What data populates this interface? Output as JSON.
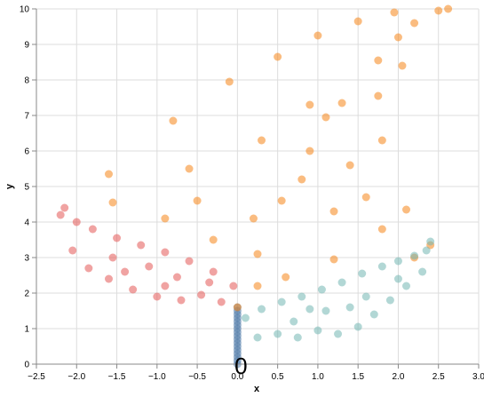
{
  "chart_data": {
    "type": "scatter",
    "title": "",
    "xlabel": "x",
    "ylabel": "y",
    "xlim": [
      -2.5,
      3.0
    ],
    "ylim": [
      0,
      10
    ],
    "x_ticks": [
      "−2.5",
      "−2.0",
      "−1.5",
      "−1.0",
      "−0.5",
      "0.0",
      "0.5",
      "1.0",
      "1.5",
      "2.0",
      "2.5",
      "3.0"
    ],
    "y_ticks": [
      "0",
      "1",
      "2",
      "3",
      "4",
      "5",
      "6",
      "7",
      "8",
      "9",
      "10"
    ],
    "grid": true,
    "legend": "none",
    "annotation": {
      "text": "0",
      "x": 0.0,
      "y": 0.0
    },
    "series_colors": {
      "main": "#f58518",
      "left": "#e45756",
      "right": "#72b7b2",
      "stem": "#4c78a8"
    },
    "series": [
      {
        "color": "#4c78a8",
        "values": [
          [
            0,
            0.0
          ],
          [
            0,
            0.1
          ],
          [
            0,
            0.2
          ],
          [
            0,
            0.3
          ],
          [
            0,
            0.4
          ],
          [
            0,
            0.5
          ],
          [
            0,
            0.6
          ],
          [
            0,
            0.7
          ],
          [
            0,
            0.8
          ],
          [
            0,
            0.9
          ],
          [
            0,
            1.0
          ],
          [
            0,
            1.1
          ],
          [
            0,
            1.2
          ],
          [
            0,
            1.3
          ],
          [
            0,
            1.4
          ],
          [
            0,
            1.5
          ],
          [
            0,
            1.6
          ]
        ]
      },
      {
        "color": "#f58518",
        "values": [
          [
            0,
            1.6
          ],
          [
            0.25,
            3.1
          ],
          [
            0.55,
            4.6
          ],
          [
            0.9,
            6.0
          ],
          [
            1.3,
            7.35
          ],
          [
            1.75,
            8.55
          ],
          [
            2.2,
            9.6
          ],
          [
            2.5,
            9.95
          ],
          [
            2.62,
            10.0
          ],
          [
            -1.6,
            5.35
          ],
          [
            -0.8,
            6.85
          ],
          [
            -0.1,
            7.95
          ],
          [
            0.5,
            8.65
          ],
          [
            1.0,
            9.25
          ],
          [
            1.5,
            9.65
          ],
          [
            1.95,
            9.9
          ],
          [
            -1.55,
            4.55
          ],
          [
            -0.6,
            5.5
          ],
          [
            0.3,
            6.3
          ],
          [
            1.1,
            6.95
          ],
          [
            1.75,
            7.55
          ],
          [
            2.05,
            8.4
          ],
          [
            2.0,
            9.2
          ],
          [
            2.1,
            4.35
          ],
          [
            1.8,
            3.8
          ],
          [
            1.2,
            2.95
          ],
          [
            0.6,
            2.45
          ],
          [
            0.25,
            2.2
          ],
          [
            2.2,
            3.0
          ],
          [
            2.4,
            3.35
          ],
          [
            -0.3,
            3.5
          ],
          [
            -0.9,
            4.1
          ],
          [
            -0.5,
            4.6
          ],
          [
            0.8,
            5.2
          ],
          [
            1.4,
            5.6
          ],
          [
            1.8,
            6.3
          ],
          [
            0.9,
            7.3
          ],
          [
            0.2,
            4.1
          ],
          [
            1.2,
            4.3
          ],
          [
            1.6,
            4.7
          ]
        ]
      },
      {
        "color": "#e45756",
        "values": [
          [
            -2.15,
            4.4
          ],
          [
            -2.2,
            4.2
          ],
          [
            -2.0,
            4.0
          ],
          [
            -1.8,
            3.8
          ],
          [
            -1.5,
            3.55
          ],
          [
            -1.2,
            3.35
          ],
          [
            -0.9,
            3.15
          ],
          [
            -0.6,
            2.9
          ],
          [
            -0.3,
            2.6
          ],
          [
            -0.05,
            2.2
          ],
          [
            -2.05,
            3.2
          ],
          [
            -1.85,
            2.7
          ],
          [
            -1.6,
            2.4
          ],
          [
            -1.3,
            2.1
          ],
          [
            -1.0,
            1.9
          ],
          [
            -0.7,
            1.8
          ],
          [
            -0.45,
            1.95
          ],
          [
            -0.2,
            1.75
          ],
          [
            -1.55,
            3.0
          ],
          [
            -1.1,
            2.75
          ],
          [
            -0.75,
            2.45
          ],
          [
            -0.35,
            2.3
          ],
          [
            -1.4,
            2.6
          ],
          [
            -0.9,
            2.2
          ]
        ]
      },
      {
        "color": "#72b7b2",
        "values": [
          [
            2.4,
            3.45
          ],
          [
            2.35,
            3.2
          ],
          [
            2.2,
            3.05
          ],
          [
            2.0,
            2.9
          ],
          [
            1.8,
            2.75
          ],
          [
            1.55,
            2.55
          ],
          [
            1.3,
            2.3
          ],
          [
            1.05,
            2.1
          ],
          [
            0.8,
            1.9
          ],
          [
            0.55,
            1.75
          ],
          [
            0.3,
            1.55
          ],
          [
            0.1,
            1.3
          ],
          [
            2.3,
            2.6
          ],
          [
            2.1,
            2.2
          ],
          [
            1.9,
            1.8
          ],
          [
            1.7,
            1.4
          ],
          [
            1.5,
            1.05
          ],
          [
            1.25,
            0.85
          ],
          [
            1.0,
            0.95
          ],
          [
            0.75,
            0.75
          ],
          [
            0.5,
            0.85
          ],
          [
            0.25,
            0.75
          ],
          [
            1.6,
            1.9
          ],
          [
            1.1,
            1.5
          ],
          [
            0.7,
            1.2
          ],
          [
            2.0,
            2.4
          ],
          [
            1.4,
            1.6
          ],
          [
            0.9,
            1.55
          ]
        ]
      }
    ]
  }
}
